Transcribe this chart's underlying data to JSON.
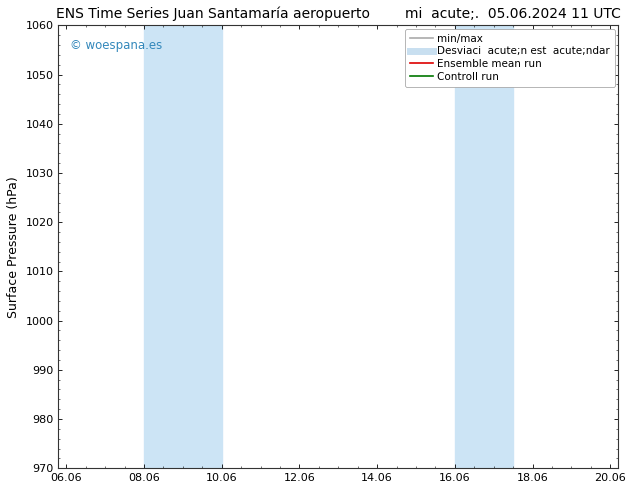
{
  "title": "ENS Time Series Juan Santamaría aeropuerto        mi  acute;.  05.06.2024 11 UTC",
  "ylabel": "Surface Pressure (hPa)",
  "ylim": [
    970,
    1060
  ],
  "yticks": [
    970,
    980,
    990,
    1000,
    1010,
    1020,
    1030,
    1040,
    1050,
    1060
  ],
  "xtick_labels": [
    "06.06",
    "08.06",
    "10.06",
    "12.06",
    "14.06",
    "16.06",
    "18.06",
    "20.06"
  ],
  "xtick_positions": [
    0,
    2,
    4,
    6,
    8,
    10,
    12,
    14
  ],
  "xlim": [
    -0.2,
    14.2
  ],
  "shaded_regions": [
    {
      "xmin": 2.0,
      "xmax": 4.0,
      "color": "#cce4f5"
    },
    {
      "xmin": 10.0,
      "xmax": 11.5,
      "color": "#cce4f5"
    }
  ],
  "watermark_text": "© woespana.es",
  "watermark_color": "#3388bb",
  "legend_entries": [
    {
      "label": "min/max",
      "color": "#aaaaaa",
      "lw": 1.2
    },
    {
      "label": "Desviaci  acute;n est  acute;ndar",
      "color": "#c8dff0",
      "lw": 5
    },
    {
      "label": "Ensemble mean run",
      "color": "#dd0000",
      "lw": 1.2
    },
    {
      "label": "Controll run",
      "color": "#007700",
      "lw": 1.2
    }
  ],
  "bg_color": "#ffffff",
  "title_fontsize": 10,
  "tick_fontsize": 8,
  "ylabel_fontsize": 9,
  "legend_fontsize": 7.5
}
